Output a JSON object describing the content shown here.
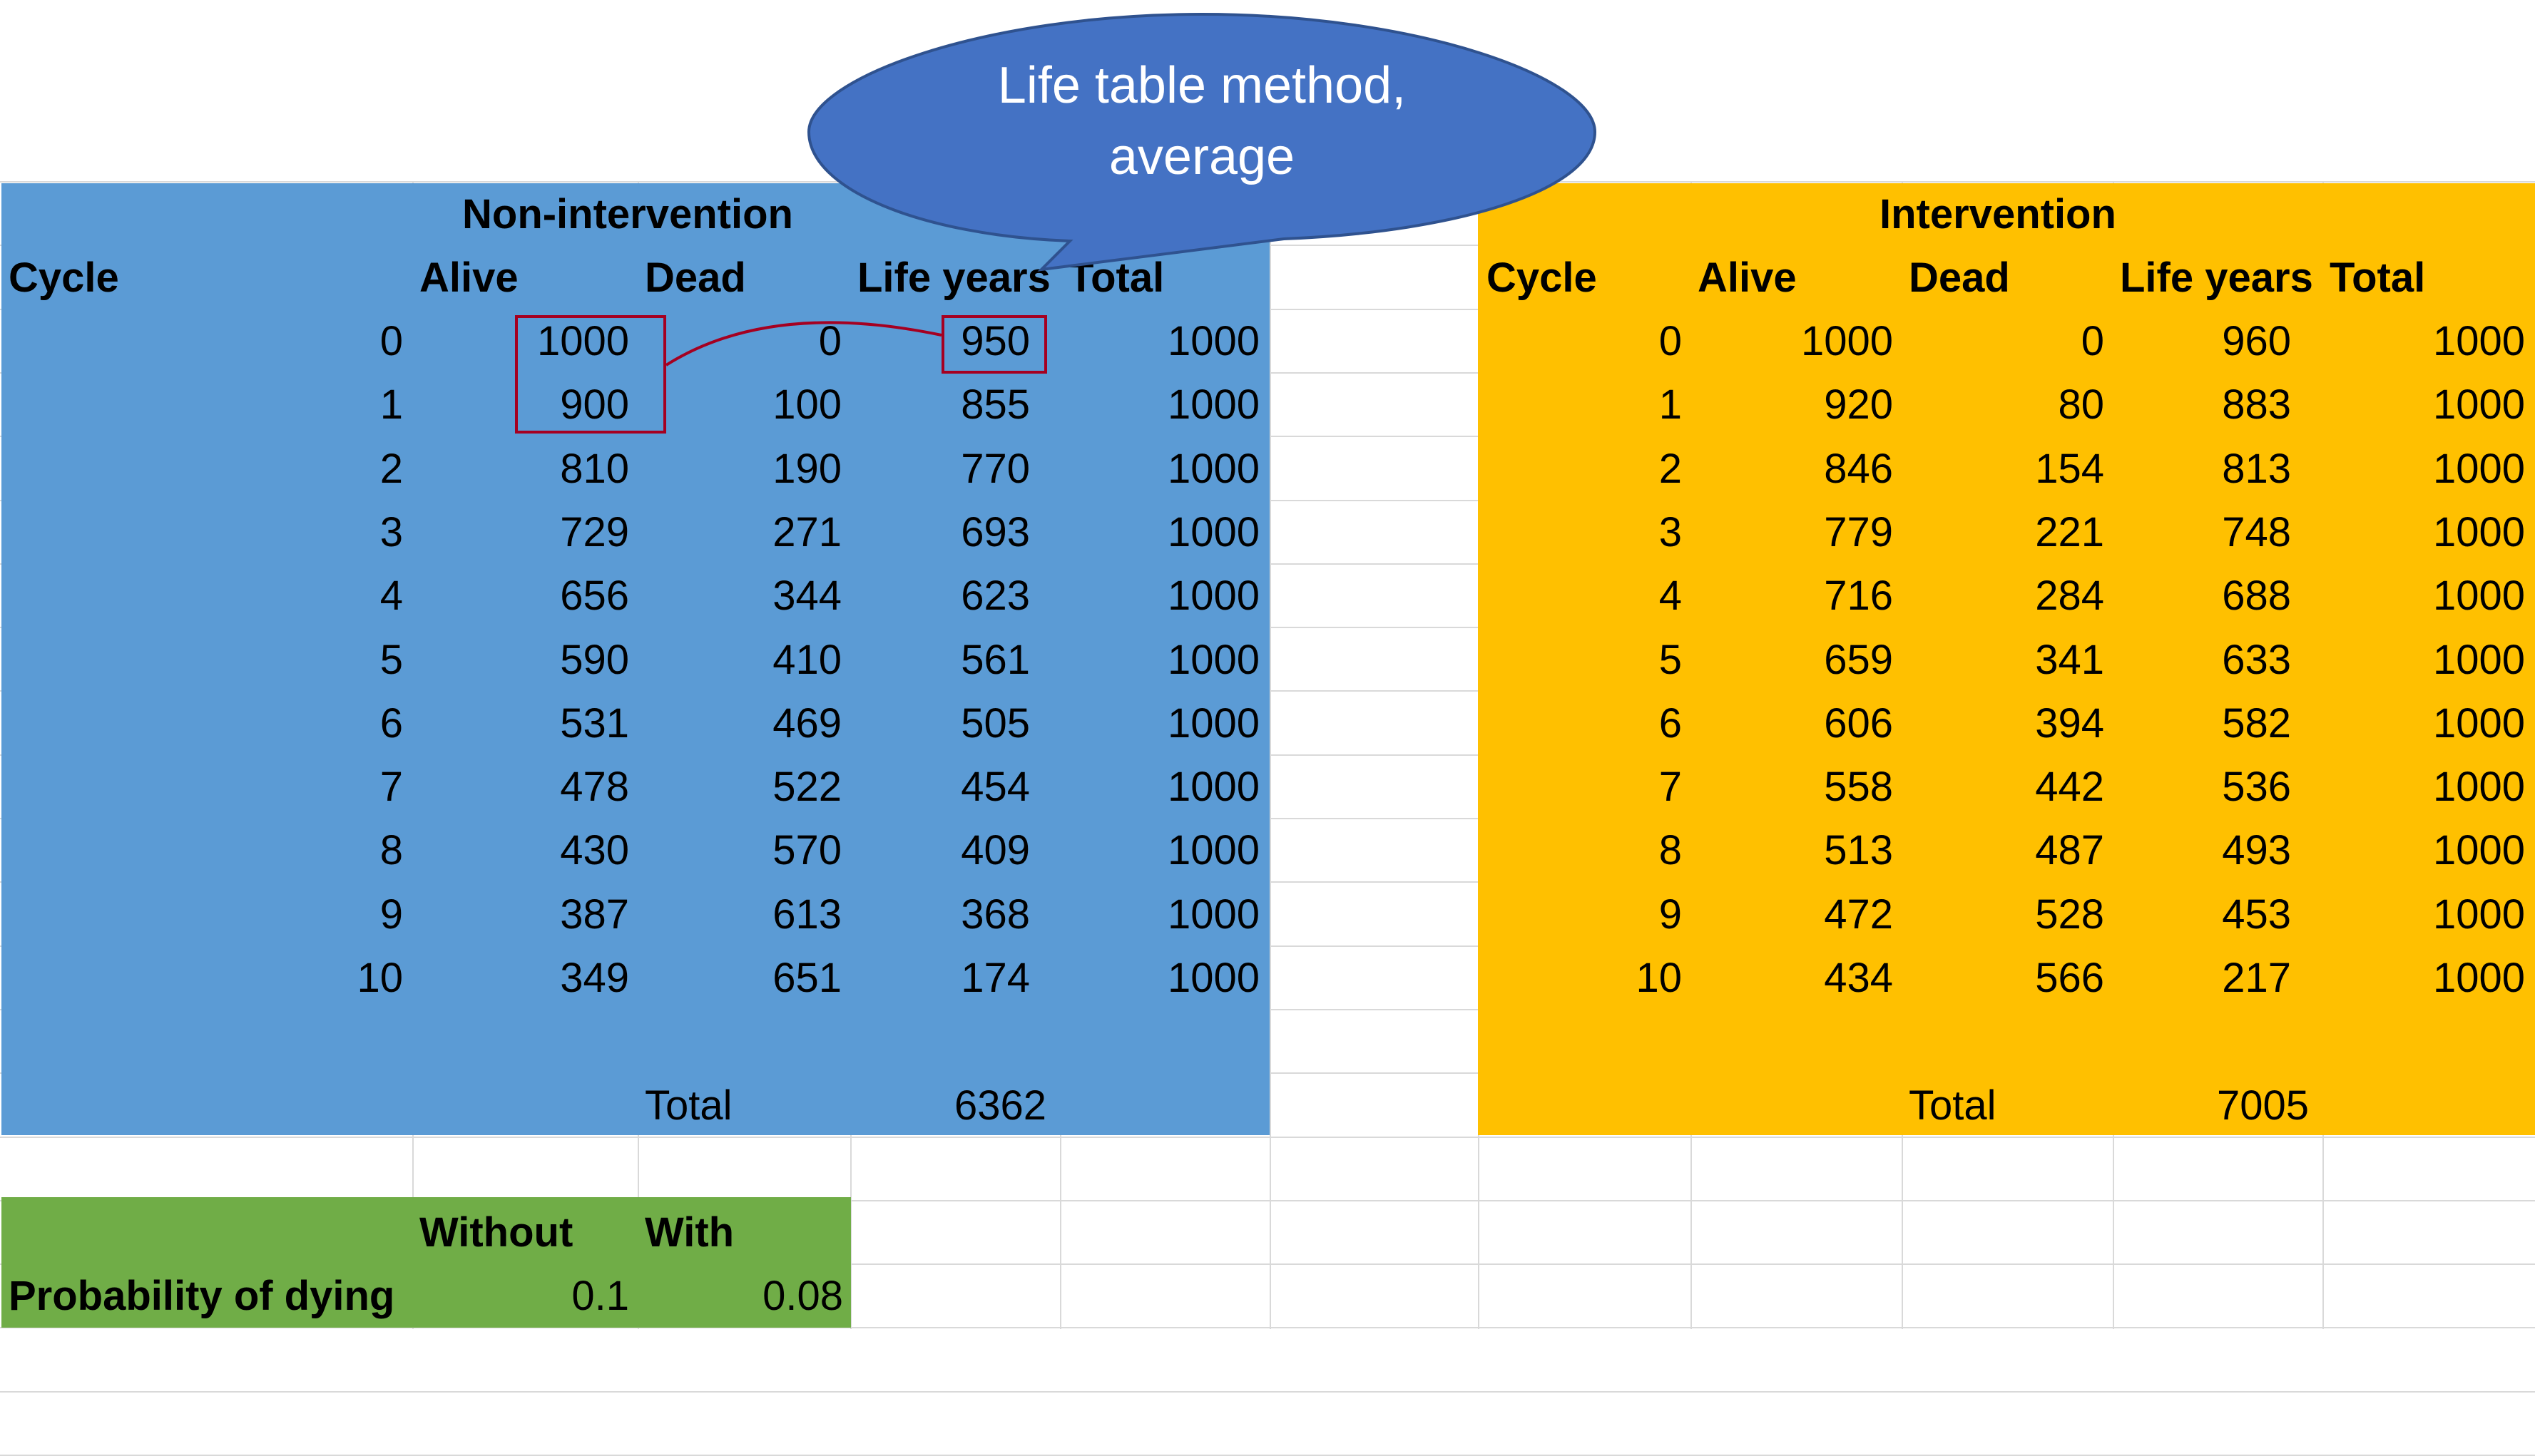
{
  "callout": {
    "line1": "Life table method,",
    "line2": "average"
  },
  "non_intervention": {
    "title": "Non-intervention",
    "headers": {
      "cycle": "Cycle",
      "alive": "Alive",
      "dead": "Dead",
      "life_years": "Life years",
      "total": "Total"
    },
    "rows": [
      [
        "0",
        "1000",
        "0",
        "950",
        "1000"
      ],
      [
        "1",
        "900",
        "100",
        "855",
        "1000"
      ],
      [
        "2",
        "810",
        "190",
        "770",
        "1000"
      ],
      [
        "3",
        "729",
        "271",
        "693",
        "1000"
      ],
      [
        "4",
        "656",
        "344",
        "623",
        "1000"
      ],
      [
        "5",
        "590",
        "410",
        "561",
        "1000"
      ],
      [
        "6",
        "531",
        "469",
        "505",
        "1000"
      ],
      [
        "7",
        "478",
        "522",
        "454",
        "1000"
      ],
      [
        "8",
        "430",
        "570",
        "409",
        "1000"
      ],
      [
        "9",
        "387",
        "613",
        "368",
        "1000"
      ],
      [
        "10",
        "349",
        "651",
        "174",
        "1000"
      ]
    ],
    "total_label": "Total",
    "total_value": "6362"
  },
  "intervention": {
    "title": "Intervention",
    "headers": {
      "cycle": "Cycle",
      "alive": "Alive",
      "dead": "Dead",
      "life_years": "Life years",
      "total": "Total"
    },
    "rows": [
      [
        "0",
        "1000",
        "0",
        "960",
        "1000"
      ],
      [
        "1",
        "920",
        "80",
        "883",
        "1000"
      ],
      [
        "2",
        "846",
        "154",
        "813",
        "1000"
      ],
      [
        "3",
        "779",
        "221",
        "748",
        "1000"
      ],
      [
        "4",
        "716",
        "284",
        "688",
        "1000"
      ],
      [
        "5",
        "659",
        "341",
        "633",
        "1000"
      ],
      [
        "6",
        "606",
        "394",
        "582",
        "1000"
      ],
      [
        "7",
        "558",
        "442",
        "536",
        "1000"
      ],
      [
        "8",
        "513",
        "487",
        "493",
        "1000"
      ],
      [
        "9",
        "472",
        "528",
        "453",
        "1000"
      ],
      [
        "10",
        "434",
        "566",
        "217",
        "1000"
      ]
    ],
    "total_label": "Total",
    "total_value": "7005"
  },
  "probability": {
    "header_without": "Without",
    "header_with": "With",
    "label": "Probability of dying",
    "without_value": "0.1",
    "with_value": "0.08"
  },
  "colors": {
    "non_intervention_fill": "#5b9bd5",
    "intervention_fill": "#ffc000",
    "probability_fill": "#70ad47",
    "callout_fill": "#4472c4",
    "highlight_border": "#a50021"
  }
}
